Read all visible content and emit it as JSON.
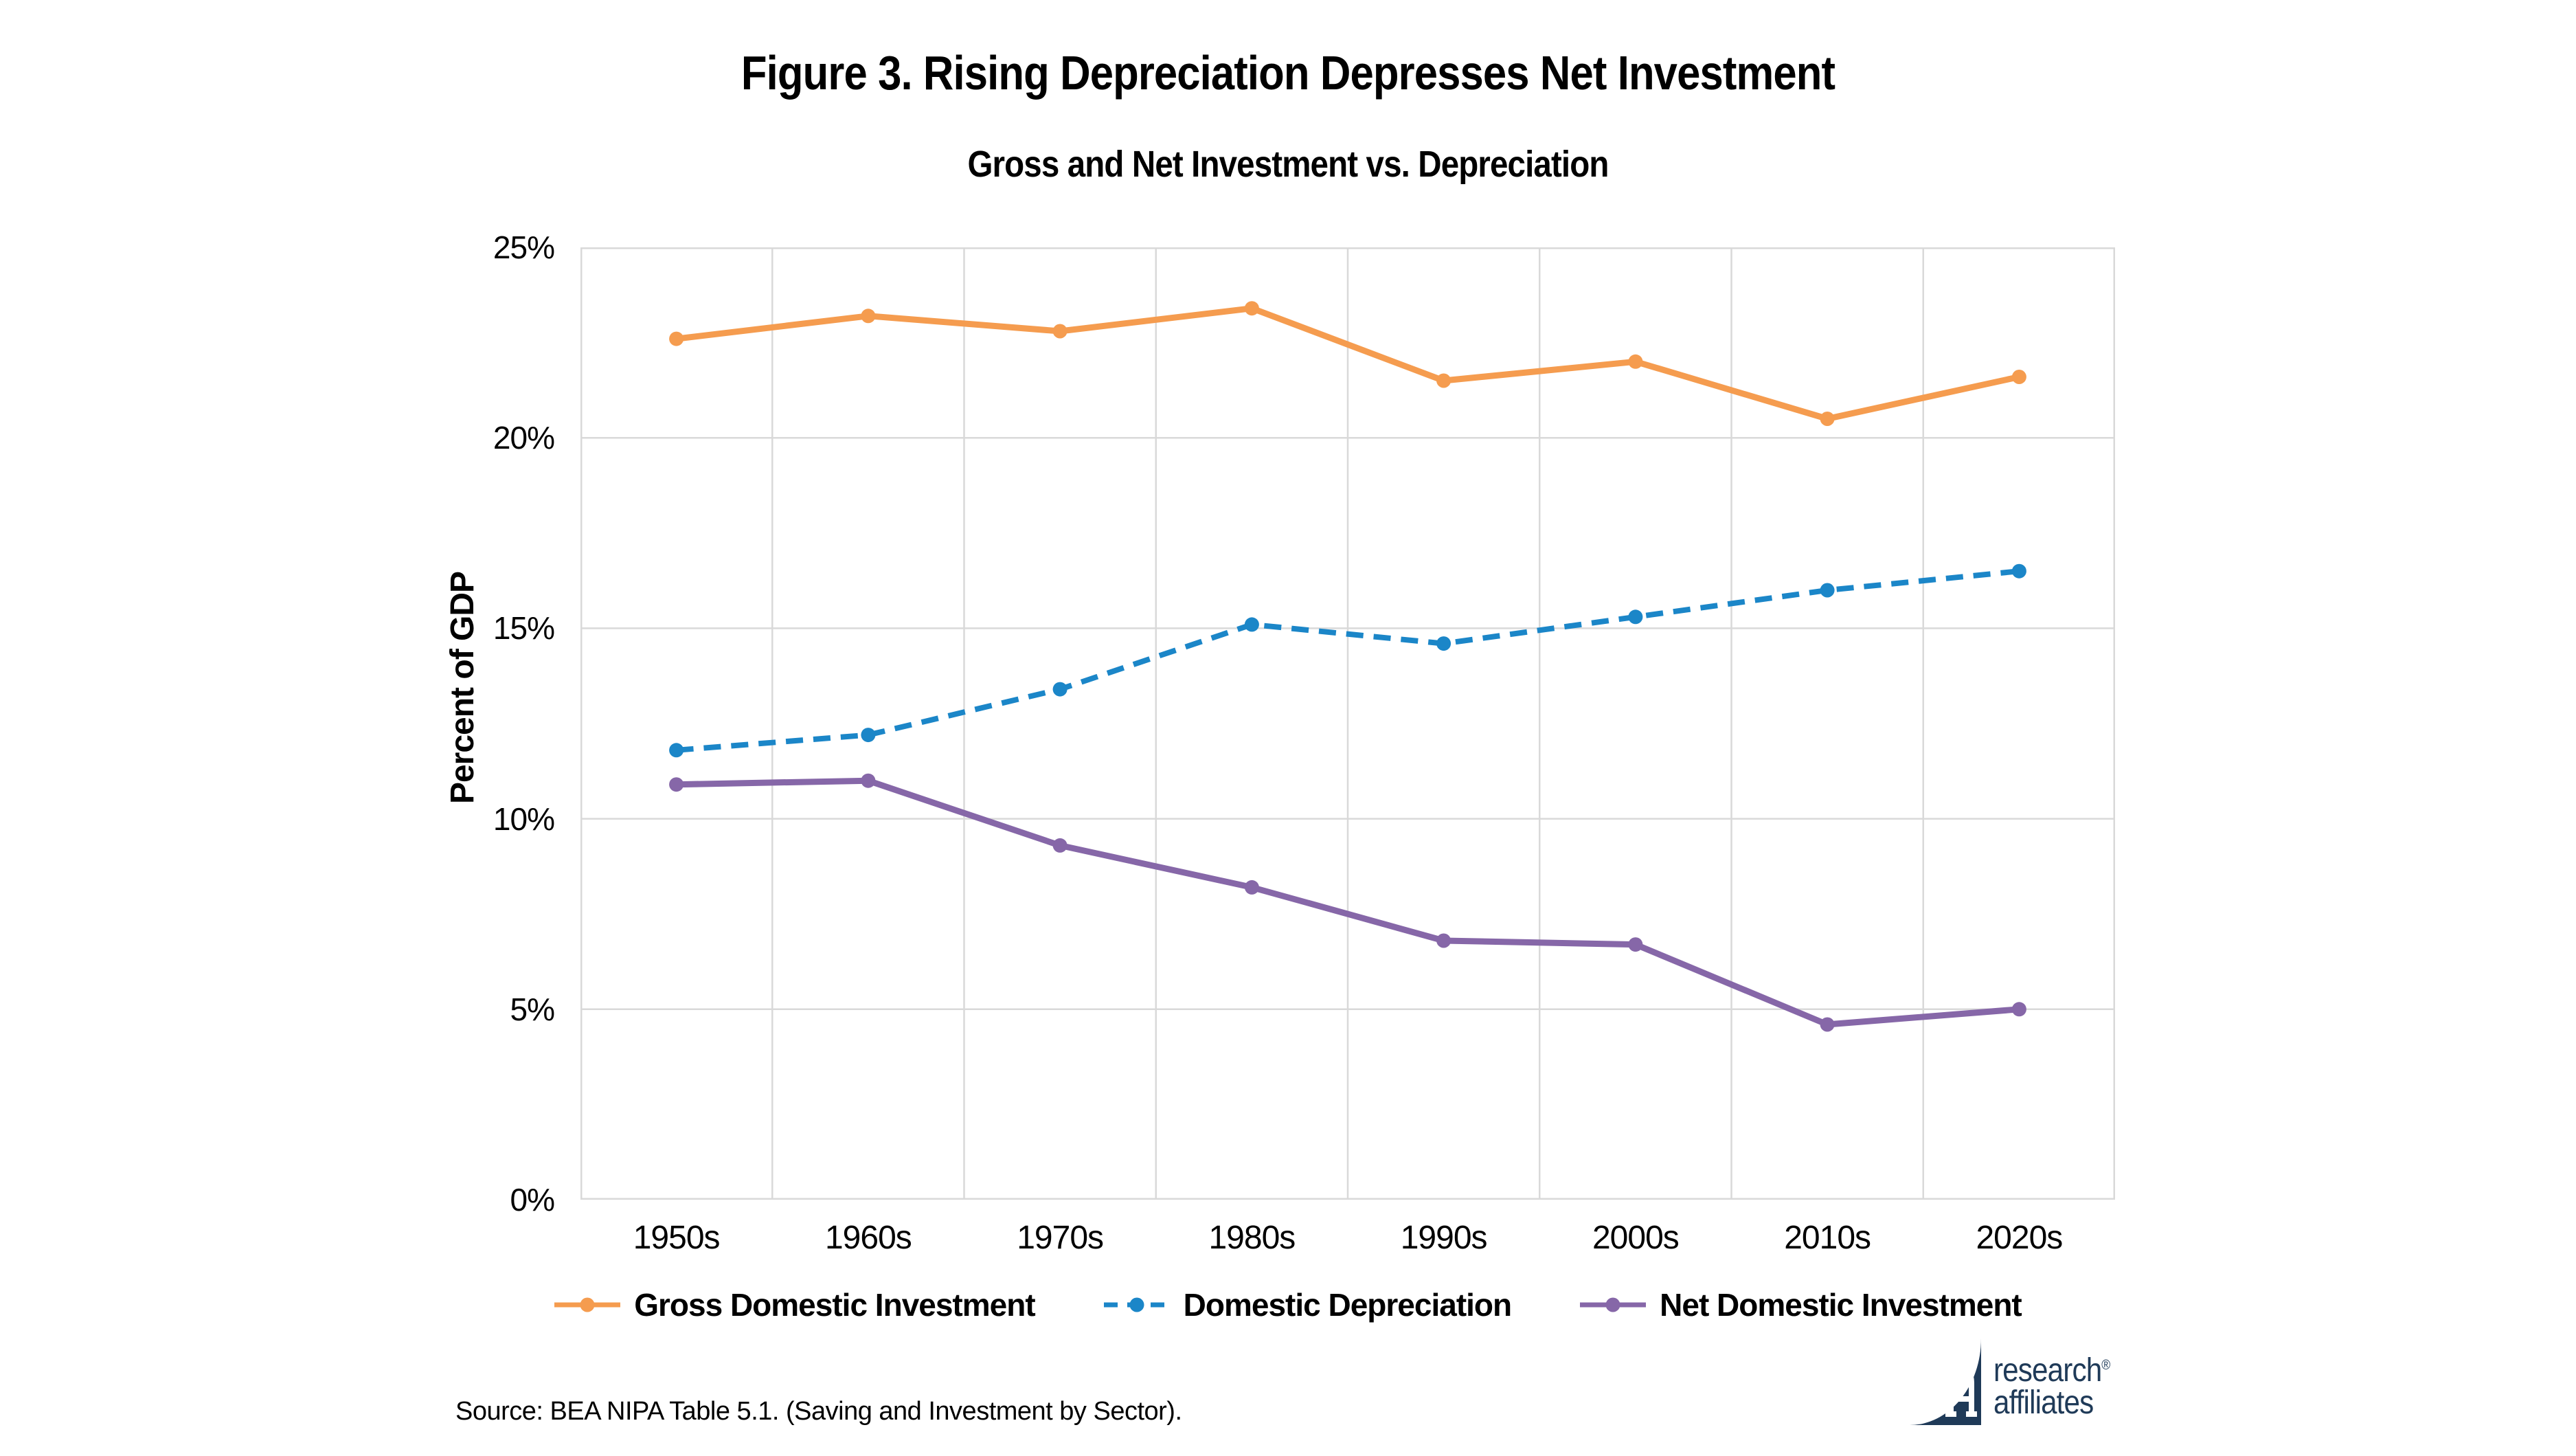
{
  "figure": {
    "title": "Figure 3. Rising Depreciation Depresses Net Investment",
    "subtitle": "Gross and Net Investment vs. Depreciation",
    "source": "Source: BEA NIPA Table 5.1. (Saving and Investment by Sector).",
    "logo": {
      "line1": "research",
      "line2": "affiliates",
      "registered_mark": "®"
    }
  },
  "chart_data": {
    "type": "line",
    "title": "Gross and Net Investment vs. Depreciation",
    "xlabel": "",
    "ylabel": "Percent of GDP",
    "categories": [
      "1950s",
      "1960s",
      "1970s",
      "1980s",
      "1990s",
      "2000s",
      "2010s",
      "2020s"
    ],
    "series": [
      {
        "name": "Gross Domestic Investment",
        "style": "solid",
        "color": "#F59C4F",
        "values": [
          22.6,
          23.2,
          22.8,
          23.4,
          21.5,
          22.0,
          20.5,
          21.6
        ]
      },
      {
        "name": "Domestic Depreciation",
        "style": "dashed",
        "color": "#1B86C8",
        "values": [
          11.8,
          12.2,
          13.4,
          15.1,
          14.6,
          15.3,
          16.0,
          16.5
        ]
      },
      {
        "name": "Net Domestic Investment",
        "style": "solid",
        "color": "#8667A8",
        "values": [
          10.9,
          11.0,
          9.3,
          8.2,
          6.8,
          6.7,
          4.6,
          5.0
        ]
      }
    ],
    "ylim": [
      0,
      25
    ],
    "yticks": [
      0,
      5,
      10,
      15,
      20,
      25
    ],
    "ytick_labels": [
      "0%",
      "5%",
      "10%",
      "15%",
      "20%",
      "25%"
    ],
    "grid": true,
    "legend_position": "bottom"
  },
  "colors": {
    "gridline": "#D9D9D9",
    "text": "#000000",
    "logo_navy": "#1F3A58"
  }
}
